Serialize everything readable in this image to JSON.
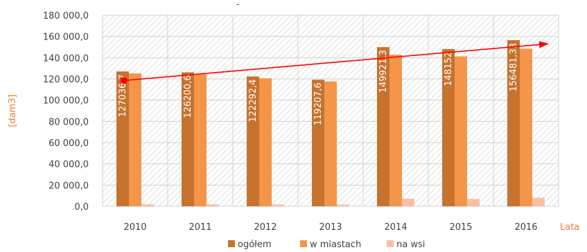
{
  "chart_data": {
    "type": "bar",
    "title": "-",
    "xlabel": "Lata",
    "ylabel": "[dam3]",
    "categories": [
      "2010",
      "2011",
      "2012",
      "2013",
      "2014",
      "2015",
      "2016"
    ],
    "ylim": [
      0,
      180000
    ],
    "ytick_step": 20000,
    "ytick_labels": [
      "0,0",
      "20 000,0",
      "40 000,0",
      "60 000,0",
      "80 000,0",
      "100 000,0",
      "120 000,0",
      "140 000,0",
      "160 000,0",
      "180 000,0"
    ],
    "series": [
      {
        "name": "ogółem",
        "color": "#C5732F",
        "values": [
          127036.7,
          126200.6,
          122292.4,
          119207.6,
          149921.3,
          148152,
          156481.33
        ],
        "data_labels": [
          "127036,7",
          "126200,6",
          "122292,4",
          "119207,6",
          "149921,3",
          "148152",
          "156481,33"
        ]
      },
      {
        "name": "w miastach",
        "color": "#F4954A",
        "values": [
          125200,
          124400,
          120600,
          117600,
          142800,
          141200,
          148400
        ]
      },
      {
        "name": "na wsi",
        "color": "#F8C0A3",
        "values": [
          1800,
          1800,
          1700,
          1600,
          7100,
          7000,
          8100
        ]
      }
    ],
    "trend_arrow": {
      "color": "#FF0000",
      "from": {
        "x": "2010",
        "y": 118500
      },
      "to": {
        "x": "2016",
        "y": 153000
      }
    },
    "legend": "bottom",
    "grid": true,
    "background_pattern": "diagonal-hatch"
  }
}
